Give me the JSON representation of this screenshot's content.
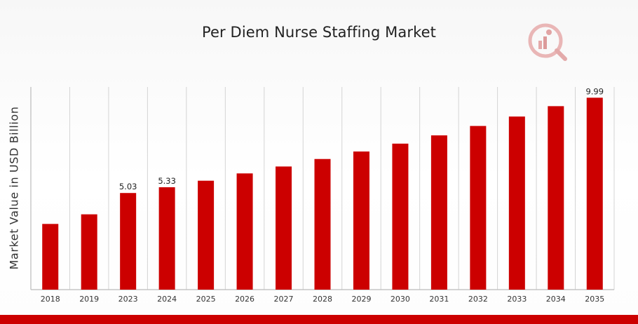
{
  "chart_data": {
    "type": "bar",
    "title": "Per Diem Nurse Staffing Market",
    "xlabel": "",
    "ylabel": "Market Value in USD Billion",
    "categories": [
      "2018",
      "2019",
      "2023",
      "2024",
      "2025",
      "2026",
      "2027",
      "2028",
      "2029",
      "2030",
      "2031",
      "2032",
      "2033",
      "2034",
      "2035"
    ],
    "values": [
      3.42,
      3.92,
      5.03,
      5.33,
      5.67,
      6.05,
      6.41,
      6.8,
      7.19,
      7.6,
      8.03,
      8.52,
      9.01,
      9.55,
      9.99
    ],
    "data_labels": {
      "2023": "5.03",
      "2024": "5.33",
      "2035": "9.99"
    },
    "ylim": [
      0,
      10.55
    ],
    "grid": "vertical",
    "legend": "none",
    "bar_color": "#cc0000",
    "grid_color": "#d4d4d4",
    "axis_color": "#bbbbbb"
  }
}
